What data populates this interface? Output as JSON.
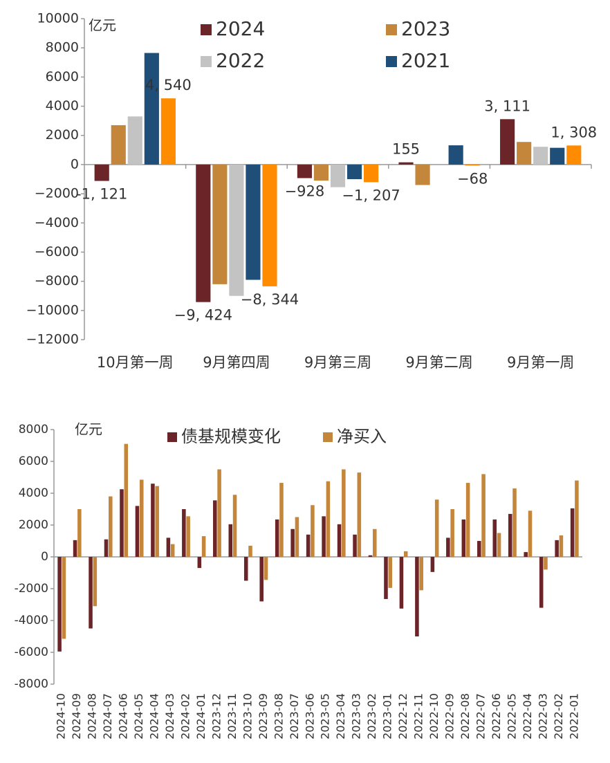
{
  "chart_data": [
    {
      "type": "bar",
      "ylabel": "亿元",
      "categories": [
        "10月第一周",
        "9月第四周",
        "9月第三周",
        "9月第二周",
        "9月第一周"
      ],
      "series": [
        {
          "name": "2024",
          "color": "#6b2427",
          "values": [
            -1121,
            -9424,
            -928,
            155,
            3111
          ],
          "value_labels": [
            "-1, 121",
            "−9, 424",
            "−928",
            "155",
            "3, 111"
          ]
        },
        {
          "name": "2023",
          "color": "#c4863a",
          "values": [
            2700,
            -8200,
            -1100,
            -1400,
            1550
          ]
        },
        {
          "name": "2022",
          "color": "#c3c3c3",
          "values": [
            3300,
            -9000,
            -1550,
            null,
            1220
          ]
        },
        {
          "name": "2021",
          "color": "#1f4e79",
          "values": [
            7650,
            -7900,
            -1000,
            1320,
            1150
          ]
        },
        {
          "color": "#ff8c00",
          "values": [
            4540,
            -8344,
            -1207,
            -68,
            1308
          ],
          "value_labels": [
            "4, 540",
            "−8, 344",
            "−1, 207",
            "−68",
            "1, 308"
          ]
        }
      ],
      "ylim": [
        -12000,
        10000
      ],
      "yticks": [
        {
          "value": 10000,
          "label": "10000"
        },
        8000,
        6000,
        4000,
        2000,
        0,
        {
          "value": -2000,
          "label": "−2000"
        },
        {
          "value": -4000,
          "label": "−4000"
        },
        {
          "value": -6000,
          "label": "−6000"
        },
        {
          "value": -8000,
          "label": "−8000"
        },
        {
          "value": -10000,
          "label": "−10000"
        },
        {
          "value": -12000,
          "label": "−12000"
        }
      ]
    },
    {
      "type": "bar",
      "ylabel": "亿元",
      "categories": [
        "2024-10",
        "2024-09",
        "2024-08",
        "2024-07",
        "2024-06",
        "2024-05",
        "2024-04",
        "2024-03",
        "2024-02",
        "2024-01",
        "2023-12",
        "2023-11",
        "2023-10",
        "2023-09",
        "2023-08",
        "2023-07",
        "2023-06",
        "2023-05",
        "2023-04",
        "2023-03",
        "2023-02",
        "2023-01",
        "2022-12",
        "2022-11",
        "2022-10",
        "2022-09",
        "2022-08",
        "2022-07",
        "2022-06",
        "2022-05",
        "2022-04",
        "2022-03",
        "2022-02",
        "2022-01"
      ],
      "series": [
        {
          "name": "债基规模变化",
          "color": "#6b2427",
          "values": [
            -5950,
            1050,
            -4500,
            1100,
            4250,
            3200,
            4600,
            1200,
            3000,
            -700,
            3550,
            2050,
            -1500,
            -2800,
            2350,
            1750,
            1400,
            2550,
            2050,
            1400,
            100,
            -2650,
            -3250,
            -5000,
            -950,
            1200,
            2350,
            1000,
            2350,
            2700,
            300,
            -3200,
            1050,
            3050
          ]
        },
        {
          "name": "净买入",
          "color": "#c4863a",
          "values": [
            -5150,
            3000,
            -3100,
            3800,
            7100,
            4850,
            4450,
            800,
            2550,
            1300,
            5500,
            3900,
            700,
            -1450,
            4650,
            2500,
            3250,
            4750,
            5500,
            5300,
            1750,
            -1950,
            350,
            -2100,
            3600,
            3000,
            4650,
            5200,
            1500,
            4300,
            2900,
            -800,
            1350,
            4800
          ]
        }
      ],
      "ylim": [
        -8000,
        8000
      ],
      "yticks": [
        8000,
        6000,
        4000,
        2000,
        0,
        {
          "value": -2000,
          "label": "-2000"
        },
        {
          "value": -4000,
          "label": "-4000"
        },
        {
          "value": -6000,
          "label": "-6000"
        },
        {
          "value": -8000,
          "label": "-8000"
        }
      ]
    }
  ]
}
